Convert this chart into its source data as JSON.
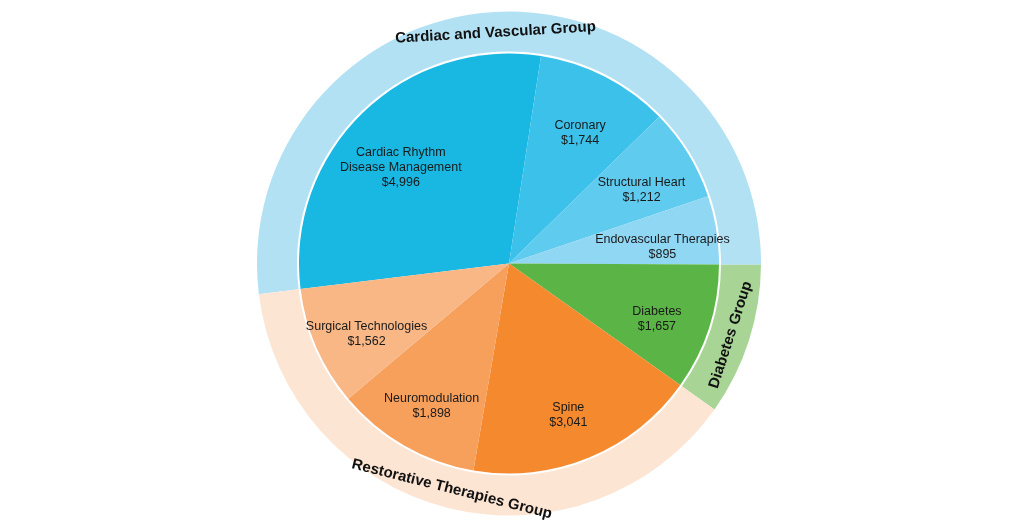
{
  "chart_data": [
    {
      "type": "donut",
      "categories": [
        "Cardiac and Vascular Group",
        "Diabetes Group",
        "Restorative Therapies Group"
      ],
      "values": [
        52.03,
        9.74,
        38.23
      ],
      "colors": [
        "#b3e1f4",
        "#a8d596",
        "#fde5d4"
      ]
    },
    {
      "type": "pie",
      "categories": [
        "Cardiac Rhythm Disease Management",
        "Coronary",
        "Structural Heart",
        "Endovascular Therapies",
        "Diabetes",
        "Spine",
        "Neuromodulation",
        "Surgical Technologies"
      ],
      "values": [
        4996,
        1744,
        1212,
        895,
        1657,
        3041,
        1898,
        1562
      ],
      "value_labels": [
        "$4,996",
        "$1,744",
        "$1,212",
        "$895",
        "$1,657",
        "$3,041",
        "$1,898",
        "$1,562"
      ],
      "colors": [
        "#19b8e3",
        "#3cc1ea",
        "#5fcbef",
        "#8fd7f3",
        "#5bb546",
        "#f5892e",
        "#f7a05c",
        "#f8b785"
      ]
    }
  ]
}
